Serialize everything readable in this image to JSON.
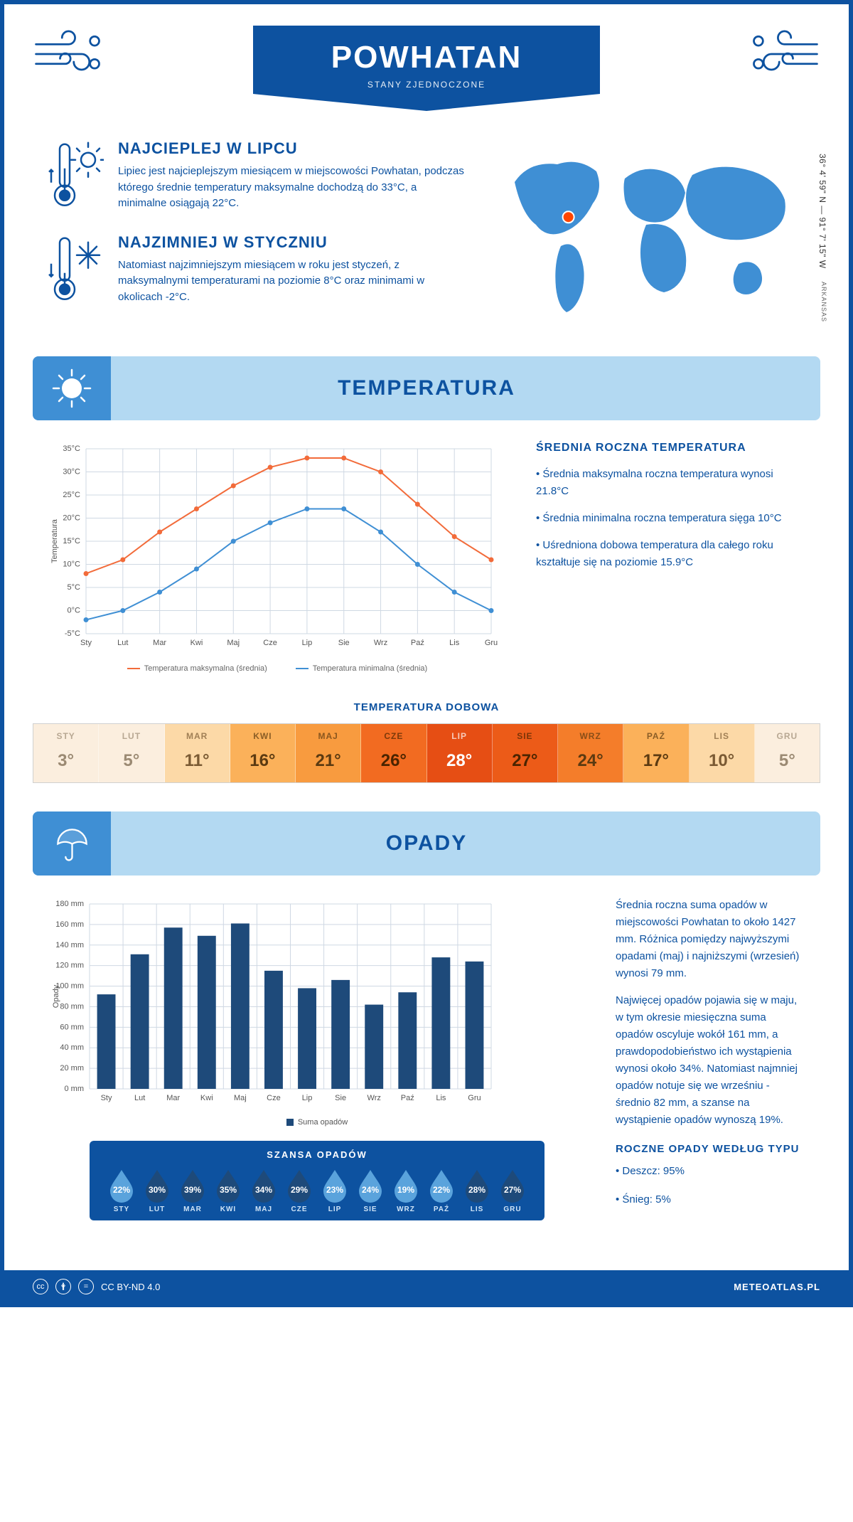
{
  "header": {
    "title": "POWHATAN",
    "subtitle": "STANY ZJEDNOCZONE"
  },
  "location": {
    "coords": "36° 4' 59\" N — 91° 7' 15\" W",
    "region": "ARKANSAS",
    "marker_xy": [
      0.24,
      0.42
    ]
  },
  "facts": {
    "hot": {
      "title": "NAJCIEPLEJ W LIPCU",
      "text": "Lipiec jest najcieplejszym miesiącem w miejscowości Powhatan, podczas którego średnie temperatury maksymalne dochodzą do 33°C, a minimalne osiągają 22°C."
    },
    "cold": {
      "title": "NAJZIMNIEJ W STYCZNIU",
      "text": "Natomiast najzimniejszym miesiącem w roku jest styczeń, z maksymalnymi temperaturami na poziomie 8°C oraz minimami w okolicach -2°C."
    }
  },
  "temperature": {
    "section_title": "TEMPERATURA",
    "chart": {
      "type": "line",
      "months": [
        "Sty",
        "Lut",
        "Mar",
        "Kwi",
        "Maj",
        "Cze",
        "Lip",
        "Sie",
        "Wrz",
        "Paź",
        "Lis",
        "Gru"
      ],
      "max": [
        8,
        11,
        17,
        22,
        27,
        31,
        33,
        33,
        30,
        23,
        16,
        11
      ],
      "min": [
        -2,
        0,
        4,
        9,
        15,
        19,
        22,
        22,
        17,
        10,
        4,
        0
      ],
      "ylim": [
        -5,
        35
      ],
      "ytick_step": 5,
      "ylabel": "Temperatura",
      "max_color": "#f26b3a",
      "min_color": "#3f8fd4",
      "grid_color": "#cfd8e3",
      "bg_color": "#ffffff",
      "legend_max": "Temperatura maksymalna (średnia)",
      "legend_min": "Temperatura minimalna (średnia)"
    },
    "summary": {
      "title": "ŚREDNIA ROCZNA TEMPERATURA",
      "lines": [
        "Średnia maksymalna roczna temperatura wynosi 21.8°C",
        "Średnia minimalna roczna temperatura sięga 10°C",
        "Uśredniona dobowa temperatura dla całego roku kształtuje się na poziomie 15.9°C"
      ]
    },
    "heatmap": {
      "title": "TEMPERATURA DOBOWA",
      "months": [
        "STY",
        "LUT",
        "MAR",
        "KWI",
        "MAJ",
        "CZE",
        "LIP",
        "SIE",
        "WRZ",
        "PAŹ",
        "LIS",
        "GRU"
      ],
      "values": [
        "3°",
        "5°",
        "11°",
        "16°",
        "21°",
        "26°",
        "28°",
        "27°",
        "24°",
        "17°",
        "10°",
        "5°"
      ],
      "bg_colors": [
        "#fbeede",
        "#fbeede",
        "#fcd9a7",
        "#fbb15a",
        "#f89b3f",
        "#f26b21",
        "#e64e14",
        "#ec5b18",
        "#f47d2a",
        "#fbb15a",
        "#fcd9a7",
        "#fbeede"
      ],
      "text_colors": [
        "#9b8a73",
        "#9b8a73",
        "#7a5a33",
        "#5b3a11",
        "#5b3a11",
        "#4a2400",
        "#ffffff",
        "#4a2400",
        "#5b3a11",
        "#5b3a11",
        "#7a5a33",
        "#9b8a73"
      ]
    }
  },
  "precip": {
    "section_title": "OPADY",
    "chart": {
      "type": "bar",
      "months": [
        "Sty",
        "Lut",
        "Mar",
        "Kwi",
        "Maj",
        "Cze",
        "Lip",
        "Sie",
        "Wrz",
        "Paź",
        "Lis",
        "Gru"
      ],
      "values": [
        92,
        131,
        157,
        149,
        161,
        115,
        98,
        106,
        82,
        94,
        128,
        124
      ],
      "ylim": [
        0,
        180
      ],
      "ytick_step": 20,
      "ylabel": "Opady",
      "bar_color": "#1e4a7a",
      "grid_color": "#cfd8e3",
      "bar_width": 0.55,
      "legend_label": "Suma opadów"
    },
    "text": {
      "p1": "Średnia roczna suma opadów w miejscowości Powhatan to około 1427 mm. Różnica pomiędzy najwyższymi opadami (maj) i najniższymi (wrzesień) wynosi 79 mm.",
      "p2": "Najwięcej opadów pojawia się w maju, w tym okresie miesięczna suma opadów oscyluje wokół 161 mm, a prawdopodobieństwo ich wystąpienia wynosi około 34%. Natomiast najmniej opadów notuje się we wrześniu - średnio 82 mm, a szanse na wystąpienie opadów wynoszą 19%."
    },
    "chance": {
      "title": "SZANSA OPADÓW",
      "months": [
        "STY",
        "LUT",
        "MAR",
        "KWI",
        "MAJ",
        "CZE",
        "LIP",
        "SIE",
        "WRZ",
        "PAŹ",
        "LIS",
        "GRU"
      ],
      "pct": [
        22,
        30,
        39,
        35,
        34,
        29,
        23,
        24,
        19,
        22,
        28,
        27
      ],
      "color_high": "#1e4a7a",
      "color_low": "#5aa3dc",
      "threshold": 27
    },
    "by_type": {
      "title": "ROCZNE OPADY WEDŁUG TYPU",
      "lines": [
        "Deszcz: 95%",
        "Śnieg: 5%"
      ]
    }
  },
  "footer": {
    "license": "CC BY-ND 4.0",
    "site": "METEOATLAS.PL"
  },
  "colors": {
    "primary": "#0d52a0",
    "section_bar": "#b3d9f2",
    "section_icon": "#3f8fd4"
  }
}
